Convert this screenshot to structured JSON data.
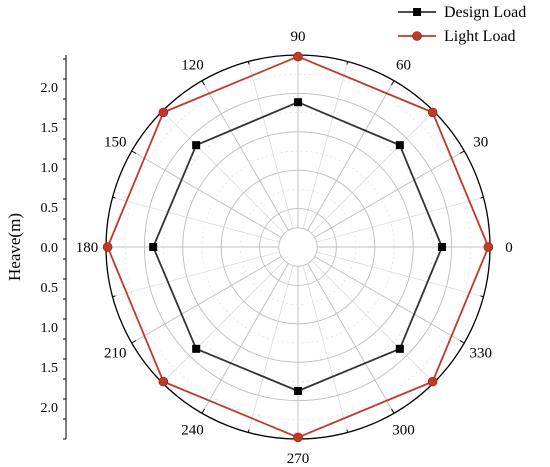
{
  "chart_data": {
    "type": "polar-line",
    "title": "",
    "ylabel": "Heave(m)",
    "radial_range": [
      0,
      2.4
    ],
    "radial_ticks": [
      0.0,
      0.5,
      1.0,
      1.5,
      2.0
    ],
    "radial_tick_labels_upper": [
      "0.0",
      "0.5",
      "1.0",
      "1.5",
      "2.0"
    ],
    "radial_tick_labels_lower": [
      "0.5",
      "1.0",
      "1.5",
      "2.0"
    ],
    "angular_ticks": [
      0,
      30,
      60,
      90,
      120,
      150,
      180,
      210,
      240,
      270,
      300,
      330
    ],
    "angular_tick_labels": [
      "0",
      "30",
      "60",
      "90",
      "120",
      "150",
      "180",
      "210",
      "240",
      "270",
      "300",
      "330"
    ],
    "grid": true,
    "legend_position": "top-right",
    "series": [
      {
        "name": "Design Load",
        "color": "#333333",
        "marker": "square",
        "theta": [
          0,
          45,
          90,
          135,
          180,
          225,
          270,
          315
        ],
        "r": [
          1.8,
          1.8,
          1.81,
          1.8,
          1.81,
          1.8,
          1.8,
          1.8
        ]
      },
      {
        "name": "Light Load",
        "color": "#c0392b",
        "marker": "circle",
        "theta": [
          0,
          45,
          90,
          135,
          180,
          225,
          270,
          315
        ],
        "r": [
          2.38,
          2.38,
          2.38,
          2.38,
          2.38,
          2.38,
          2.38,
          2.38
        ]
      }
    ]
  }
}
